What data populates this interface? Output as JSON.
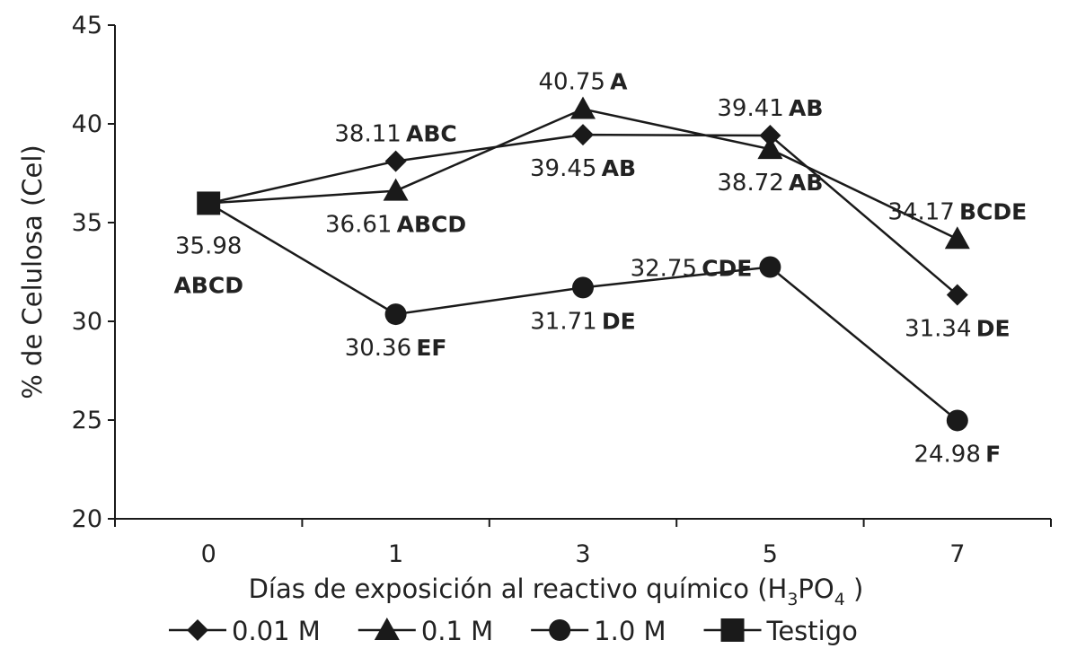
{
  "chart_data": {
    "type": "line",
    "xlabel": "Días de exposición al reactivo químico (H3PO4 )",
    "xlabel_parts": {
      "pre": "Días de exposición al reactivo químico (H",
      "sub1": "3",
      "mid": "PO",
      "sub2": "4",
      "post": " )"
    },
    "ylabel": "% de Celulosa (Cel)",
    "categories": [
      "0",
      "1",
      "3",
      "5",
      "7"
    ],
    "ylim": [
      20,
      45
    ],
    "yticks": [
      "20",
      "25",
      "30",
      "35",
      "40",
      "45"
    ],
    "grid": false,
    "legend_position": "bottom",
    "series": [
      {
        "name": "0.01 M",
        "marker": "diamond",
        "values": [
          35.98,
          38.11,
          39.45,
          39.41,
          31.34
        ]
      },
      {
        "name": "0.1 M",
        "marker": "triangle",
        "values": [
          35.98,
          36.61,
          40.75,
          38.72,
          34.17
        ]
      },
      {
        "name": "1.0 M",
        "marker": "circle",
        "values": [
          35.98,
          30.36,
          31.71,
          32.75,
          24.98
        ]
      },
      {
        "name": "Testigo",
        "marker": "square",
        "values": [
          35.98,
          null,
          null,
          null,
          null
        ]
      }
    ],
    "annotations": [
      {
        "series": "Testigo",
        "x": "0",
        "value": "35.98",
        "letters": "ABCD",
        "placement": "below-stacked"
      },
      {
        "series": "0.01 M",
        "x": "1",
        "value": "38.11",
        "letters": "ABC",
        "placement": "above"
      },
      {
        "series": "0.1 M",
        "x": "1",
        "value": "36.61",
        "letters": "ABCD",
        "placement": "below"
      },
      {
        "series": "1.0 M",
        "x": "1",
        "value": "30.36",
        "letters": "EF",
        "placement": "below"
      },
      {
        "series": "0.1 M",
        "x": "3",
        "value": "40.75",
        "letters": "A",
        "placement": "above"
      },
      {
        "series": "0.01 M",
        "x": "3",
        "value": "39.45",
        "letters": "AB",
        "placement": "below"
      },
      {
        "series": "1.0 M",
        "x": "3",
        "value": "31.71",
        "letters": "DE",
        "placement": "below"
      },
      {
        "series": "0.01 M",
        "x": "5",
        "value": "39.41",
        "letters": "AB",
        "placement": "above"
      },
      {
        "series": "0.1 M",
        "x": "5",
        "value": "38.72",
        "letters": "AB",
        "placement": "below"
      },
      {
        "series": "1.0 M",
        "x": "5",
        "value": "32.75",
        "letters": "CDE",
        "placement": "left"
      },
      {
        "series": "0.1 M",
        "x": "7",
        "value": "34.17",
        "letters": "BCDE",
        "placement": "above"
      },
      {
        "series": "0.01 M",
        "x": "7",
        "value": "31.34",
        "letters": "DE",
        "placement": "below"
      },
      {
        "series": "1.0 M",
        "x": "7",
        "value": "24.98",
        "letters": "F",
        "placement": "below"
      }
    ],
    "colors": {
      "line": "#1a1a1a",
      "marker": "#1a1a1a",
      "text": "#222222"
    }
  }
}
